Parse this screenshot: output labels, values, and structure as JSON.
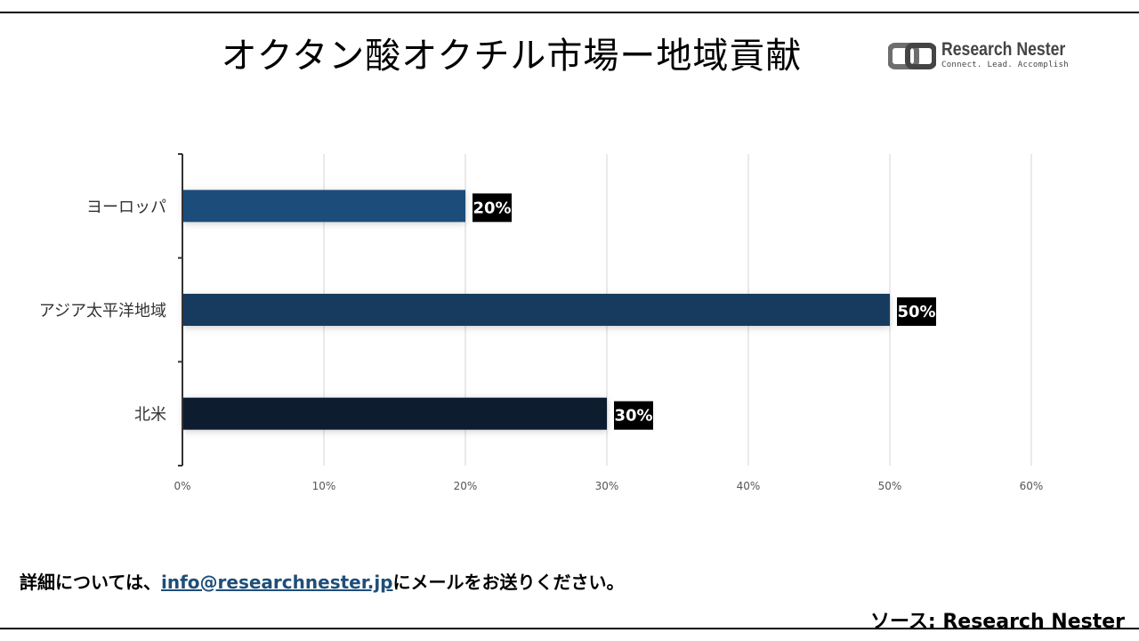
{
  "title": "オクタン酸オクチル市場ー地域貢献",
  "logo": {
    "name": "Research Nester",
    "tagline": "Connect. Lead. Accomplish"
  },
  "footer": {
    "prefix": "詳細については、",
    "email": "info@researchnester.jp",
    "suffix": "にメールをお送りください。"
  },
  "source": "ソース: Research Nester",
  "chart_data": {
    "type": "bar",
    "orientation": "horizontal",
    "categories": [
      "ヨーロッパ",
      "アジア太平洋地域",
      "北米"
    ],
    "values": [
      20,
      50,
      30
    ],
    "value_labels": [
      "20%",
      "50%",
      "30%"
    ],
    "colors": [
      "#1f4e7a",
      "#163a5e",
      "#0d1b2d"
    ],
    "xlim": [
      0,
      60
    ],
    "x_ticks": [
      "0%",
      "10%",
      "20%",
      "30%",
      "40%",
      "50%",
      "60%"
    ],
    "grid": "vertical",
    "legend": "none"
  }
}
